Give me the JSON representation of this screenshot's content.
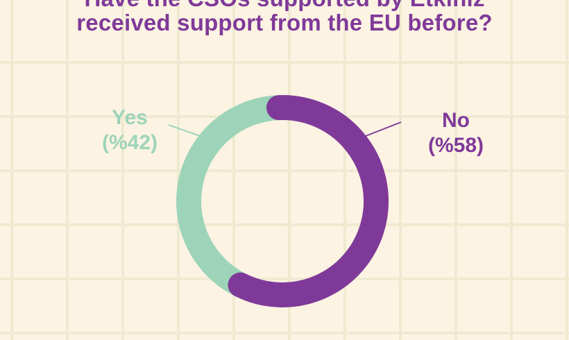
{
  "title_lines": [
    "Have the CSOs supported by Etkiniz",
    "received support from the EU before?"
  ],
  "colors": {
    "background": "#fdf3e3",
    "grid": "#eeead0",
    "title": "#7f3a99"
  },
  "chart_data": {
    "type": "pie",
    "style": "donut",
    "title": "Have the CSOs supported by Etkiniz received support from the EU before?",
    "slices": [
      {
        "label": "No",
        "value": 58,
        "value_label": "(%58)",
        "color": "#7f3a99"
      },
      {
        "label": "Yes",
        "value": 42,
        "value_label": "(%42)",
        "color": "#9dd4b9"
      }
    ]
  }
}
